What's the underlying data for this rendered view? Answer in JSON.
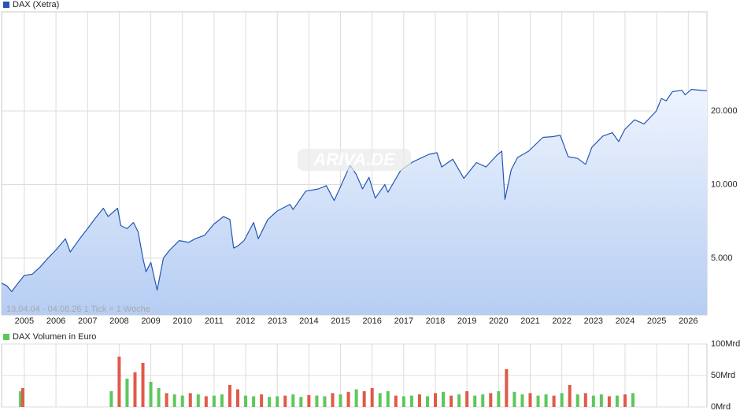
{
  "chart_data": [
    {
      "type": "line",
      "legend": "DAX (Xetra)",
      "range_note": "13.04.04 - 04.08.26   1 Tick = 1 Woche",
      "watermark": "ARIVA.DE",
      "log_scale": true,
      "grid": true,
      "xlim": [
        2004.28,
        2026.59
      ],
      "xticks": [
        2005,
        2006,
        2007,
        2008,
        2009,
        2010,
        2011,
        2012,
        2013,
        2014,
        2015,
        2016,
        2017,
        2018,
        2019,
        2020,
        2021,
        2022,
        2023,
        2024,
        2025,
        2026
      ],
      "ylim": [
        2930,
        50900
      ],
      "yticks": [
        {
          "value": 5000,
          "label": "5.000"
        },
        {
          "value": 10000,
          "label": "10.000"
        },
        {
          "value": 20000,
          "label": "20.000"
        }
      ],
      "series": [
        {
          "name": "DAX (Xetra)",
          "color": "#2257b5",
          "x": [
            2004.28,
            2004.45,
            2004.6,
            2004.8,
            2005.0,
            2005.25,
            2005.5,
            2005.75,
            2006.0,
            2006.3,
            2006.45,
            2006.75,
            2007.0,
            2007.25,
            2007.5,
            2007.65,
            2007.95,
            2008.05,
            2008.25,
            2008.45,
            2008.6,
            2008.75,
            2008.85,
            2009.0,
            2009.2,
            2009.4,
            2009.6,
            2009.9,
            2010.2,
            2010.4,
            2010.7,
            2011.0,
            2011.3,
            2011.5,
            2011.62,
            2011.75,
            2011.95,
            2012.25,
            2012.4,
            2012.7,
            2013.0,
            2013.4,
            2013.5,
            2013.9,
            2014.3,
            2014.55,
            2014.8,
            2015.0,
            2015.3,
            2015.5,
            2015.7,
            2015.9,
            2016.1,
            2016.4,
            2016.5,
            2016.9,
            2017.3,
            2017.8,
            2018.05,
            2018.2,
            2018.55,
            2018.9,
            2019.3,
            2019.6,
            2019.95,
            2020.1,
            2020.2,
            2020.4,
            2020.6,
            2020.95,
            2021.4,
            2021.7,
            2021.95,
            2022.2,
            2022.5,
            2022.75,
            2022.95,
            2023.3,
            2023.6,
            2023.8,
            2023.99,
            2024.3,
            2024.6,
            2024.99,
            2025.15,
            2025.3,
            2025.5,
            2025.8,
            2025.9,
            2026.1,
            2026.59
          ],
          "values": [
            3950,
            3850,
            3650,
            3950,
            4250,
            4300,
            4600,
            5000,
            5400,
            6000,
            5300,
            6000,
            6600,
            7300,
            8000,
            7400,
            8000,
            6800,
            6600,
            7000,
            6400,
            5000,
            4400,
            4800,
            3700,
            5000,
            5400,
            5900,
            5800,
            6000,
            6200,
            6900,
            7400,
            7200,
            5500,
            5600,
            5900,
            7000,
            6000,
            7200,
            7800,
            8300,
            7900,
            9400,
            9600,
            9900,
            8600,
            9800,
            12000,
            11000,
            9600,
            10700,
            8800,
            10000,
            9300,
            11400,
            12400,
            13300,
            13500,
            11800,
            12700,
            10600,
            12300,
            11800,
            13200,
            13700,
            8700,
            11500,
            12900,
            13700,
            15600,
            15700,
            15900,
            13000,
            12800,
            12100,
            14200,
            15800,
            16300,
            15000,
            16800,
            18400,
            17700,
            20000,
            22500,
            22000,
            24000,
            24300,
            23300,
            24500,
            24200
          ]
        }
      ]
    },
    {
      "type": "bar",
      "legend": "DAX Volumen in Euro",
      "legend_color": "#5cc85c",
      "grid": true,
      "xlim": [
        2004.28,
        2026.59
      ],
      "xticks": [
        2005,
        2006,
        2007,
        2008,
        2009,
        2010,
        2011,
        2012,
        2013,
        2014,
        2015,
        2016,
        2017,
        2018,
        2019,
        2020,
        2021,
        2022,
        2023,
        2024,
        2025,
        2026
      ],
      "ylim": [
        0,
        100
      ],
      "yticks": [
        {
          "value": 0,
          "label": "0Mrd"
        },
        {
          "value": 50,
          "label": "50Mrd"
        },
        {
          "value": 100,
          "label": "100Mrd"
        }
      ],
      "x": [
        2004.88,
        2004.95,
        2007.75,
        2008.0,
        2008.25,
        2008.5,
        2008.75,
        2009.0,
        2009.25,
        2009.5,
        2009.75,
        2010.0,
        2010.25,
        2010.5,
        2010.75,
        2011.0,
        2011.25,
        2011.5,
        2011.75,
        2012.0,
        2012.25,
        2012.5,
        2012.75,
        2013.0,
        2013.25,
        2013.5,
        2013.75,
        2014.0,
        2014.25,
        2014.5,
        2014.75,
        2015.0,
        2015.25,
        2015.5,
        2015.75,
        2016.0,
        2016.25,
        2016.5,
        2016.75,
        2017.0,
        2017.25,
        2017.5,
        2017.75,
        2018.0,
        2018.25,
        2018.5,
        2018.75,
        2019.0,
        2019.25,
        2019.5,
        2019.75,
        2020.0,
        2020.25,
        2020.5,
        2020.75,
        2021.0,
        2021.25,
        2021.5,
        2021.75,
        2022.0,
        2022.25,
        2022.5,
        2022.75,
        2023.0,
        2023.25,
        2023.5,
        2023.75,
        2024.0,
        2024.25
      ],
      "values": [
        25,
        30,
        25,
        80,
        45,
        55,
        70,
        40,
        30,
        22,
        20,
        18,
        22,
        20,
        17,
        18,
        20,
        35,
        28,
        18,
        17,
        20,
        16,
        17,
        18,
        20,
        16,
        19,
        18,
        17,
        22,
        20,
        24,
        28,
        25,
        30,
        22,
        25,
        18,
        17,
        18,
        20,
        17,
        22,
        24,
        18,
        20,
        25,
        18,
        20,
        22,
        25,
        60,
        24,
        20,
        22,
        18,
        20,
        18,
        22,
        35,
        20,
        22,
        18,
        20,
        17,
        18,
        20,
        22
      ],
      "colors": [
        "#5cc85c",
        "#e05a4a",
        "#5cc85c",
        "#e05a4a",
        "#5cc85c",
        "#e05a4a",
        "#e05a4a",
        "#5cc85c",
        "#5cc85c",
        "#e05a4a",
        "#5cc85c",
        "#5cc85c",
        "#e05a4a",
        "#5cc85c",
        "#e05a4a",
        "#5cc85c",
        "#5cc85c",
        "#e05a4a",
        "#e05a4a",
        "#5cc85c",
        "#5cc85c",
        "#e05a4a",
        "#5cc85c",
        "#5cc85c",
        "#e05a4a",
        "#5cc85c",
        "#5cc85c",
        "#e05a4a",
        "#5cc85c",
        "#5cc85c",
        "#e05a4a",
        "#5cc85c",
        "#e05a4a",
        "#5cc85c",
        "#e05a4a",
        "#e05a4a",
        "#5cc85c",
        "#5cc85c",
        "#e05a4a",
        "#5cc85c",
        "#5cc85c",
        "#e05a4a",
        "#5cc85c",
        "#e05a4a",
        "#5cc85c",
        "#e05a4a",
        "#5cc85c",
        "#e05a4a",
        "#5cc85c",
        "#5cc85c",
        "#e05a4a",
        "#5cc85c",
        "#e05a4a",
        "#5cc85c",
        "#5cc85c",
        "#e05a4a",
        "#5cc85c",
        "#5cc85c",
        "#e05a4a",
        "#5cc85c",
        "#e05a4a",
        "#5cc85c",
        "#e05a4a",
        "#5cc85c",
        "#5cc85c",
        "#e05a4a",
        "#5cc85c",
        "#e05a4a",
        "#5cc85c"
      ]
    }
  ]
}
